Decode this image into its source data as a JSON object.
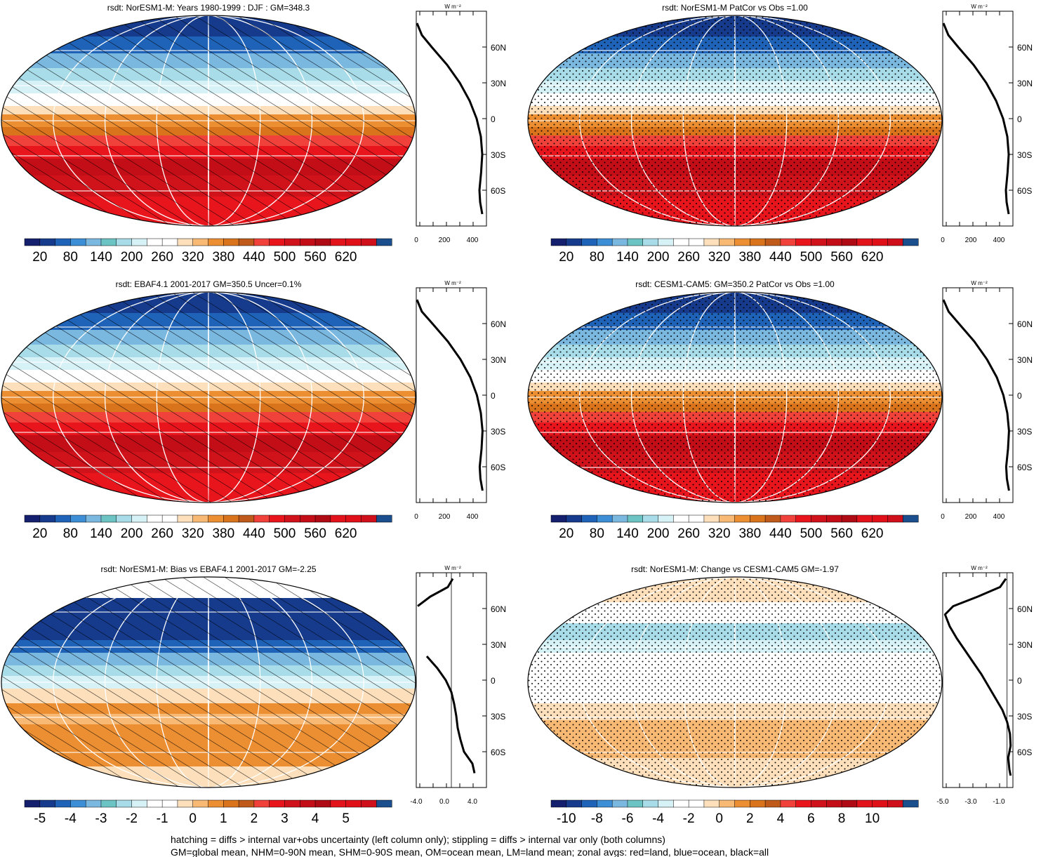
{
  "footer": {
    "line1": "hatching = diffs > internal var+obs uncertainty (left column only); stippling = diffs > internal var only (both columns)",
    "line2": "GM=global mean, NHM=0-90N mean, SHM=0-90S mean, OM=ocean mean, LM=land mean; zonal avgs: red=land, blue=ocean, black=all"
  },
  "colors": {
    "abs_palette": [
      "#14206e",
      "#163b8c",
      "#1f63b8",
      "#3c8ed6",
      "#7ab8e0",
      "#6cc3c3",
      "#a8dce8",
      "#d6f2f6",
      "#ffffff",
      "#ffffff",
      "#fde0bb",
      "#f8b974",
      "#ec8f33",
      "#d9731c",
      "#bf5a1b",
      "#f0413a",
      "#e8151d",
      "#d0121a",
      "#c40e17",
      "#ae0b14",
      "#e3131c",
      "#df1018",
      "#cf0f19",
      "#1a4e8c"
    ],
    "diff_palette": [
      "#14206e",
      "#163b8c",
      "#1f63b8",
      "#3c8ed6",
      "#7ab8e0",
      "#6cc3c3",
      "#a8dce8",
      "#d6f2f6",
      "#ffffff",
      "#ffffff",
      "#fde0bb",
      "#f8b974",
      "#ec8f33",
      "#d9731c",
      "#bf5a1b",
      "#f0413a",
      "#e8151d",
      "#d0121a",
      "#c40e17",
      "#ae0b14",
      "#e3131c",
      "#df1018",
      "#cf0f19",
      "#1a4e8c"
    ]
  },
  "chart_data": [
    {
      "type": "heatmap",
      "title": "rsdt: NorESM1-M: Years 1980-1999 : DJF : GM=348.3",
      "pattern": "hatch",
      "colorbar_ticks": [
        "20",
        "80",
        "140",
        "200",
        "260",
        "320",
        "380",
        "440",
        "500",
        "560",
        "620"
      ],
      "profile": {
        "title": "W m⁻²",
        "xticks": [
          "0",
          "200",
          "400"
        ],
        "xlim": [
          0,
          500
        ],
        "lat": [
          80,
          70,
          60,
          45,
          30,
          15,
          0,
          -15,
          -30,
          -45,
          -60,
          -70,
          -80
        ],
        "values": [
          5,
          40,
          110,
          220,
          310,
          380,
          430,
          460,
          470,
          462,
          450,
          455,
          470
        ]
      },
      "lat_labels": [
        "60N",
        "30N",
        "0",
        "30S",
        "60S"
      ]
    },
    {
      "type": "heatmap",
      "title": "rsdt: NorESM1-M PatCor vs Obs =1.00",
      "pattern": "stipple",
      "colorbar_ticks": [
        "20",
        "80",
        "140",
        "200",
        "260",
        "320",
        "380",
        "440",
        "500",
        "560",
        "620"
      ],
      "profile": {
        "title": "W m⁻²",
        "xticks": [
          "0",
          "200",
          "400"
        ],
        "xlim": [
          0,
          500
        ],
        "lat": [
          80,
          70,
          60,
          45,
          30,
          15,
          0,
          -15,
          -30,
          -45,
          -60,
          -70,
          -80
        ],
        "values": [
          5,
          40,
          110,
          220,
          310,
          380,
          430,
          460,
          470,
          462,
          450,
          455,
          470
        ]
      },
      "lat_labels": [
        "60N",
        "30N",
        "0",
        "30S",
        "60S"
      ]
    },
    {
      "type": "heatmap",
      "title": "rsdt: EBAF4.1 2001-2017 GM=350.5 Uncer=0.1%",
      "pattern": "hatch",
      "colorbar_ticks": [
        "20",
        "80",
        "140",
        "200",
        "260",
        "320",
        "380",
        "440",
        "500",
        "560",
        "620"
      ],
      "profile": {
        "title": "W m⁻²",
        "xticks": [
          "0",
          "200",
          "400"
        ],
        "xlim": [
          0,
          500
        ],
        "lat": [
          80,
          70,
          60,
          45,
          30,
          15,
          0,
          -15,
          -30,
          -45,
          -60,
          -70,
          -80
        ],
        "values": [
          5,
          40,
          115,
          225,
          315,
          385,
          432,
          460,
          472,
          465,
          452,
          457,
          472
        ]
      },
      "lat_labels": [
        "60N",
        "30N",
        "0",
        "30S",
        "60S"
      ]
    },
    {
      "type": "heatmap",
      "title": "rsdt: CESM1-CAM5: GM=350.2 PatCor vs Obs =1.00",
      "pattern": "stipple",
      "colorbar_ticks": [
        "20",
        "80",
        "140",
        "200",
        "260",
        "320",
        "380",
        "440",
        "500",
        "560",
        "620"
      ],
      "profile": {
        "title": "W m⁻²",
        "xticks": [
          "0",
          "200",
          "400"
        ],
        "xlim": [
          0,
          500
        ],
        "lat": [
          80,
          70,
          60,
          45,
          30,
          15,
          0,
          -15,
          -30,
          -45,
          -60,
          -70,
          -80
        ],
        "values": [
          5,
          42,
          115,
          225,
          315,
          385,
          432,
          460,
          472,
          465,
          452,
          457,
          472
        ]
      },
      "lat_labels": [
        "60N",
        "30N",
        "0",
        "30S",
        "60S"
      ]
    },
    {
      "type": "heatmap",
      "title": "rsdt: NorESM1-M: Bias vs EBAF4.1 2001-2017 GM=-2.25",
      "pattern": "hatch",
      "colorbar_ticks": [
        "-5",
        "-4",
        "-3",
        "-2",
        "-1",
        "0",
        "1",
        "2",
        "3",
        "4",
        "5"
      ],
      "profile": {
        "title": "W m⁻²",
        "xticks": [
          "-4.0",
          "0.0",
          "4.0"
        ],
        "xlim": [
          -5,
          5
        ],
        "lat": [
          85,
          78,
          70,
          62,
          50,
          40,
          30,
          20,
          10,
          0,
          -10,
          -20,
          -30,
          -40,
          -50,
          -60,
          -70,
          -78
        ],
        "values": [
          0.2,
          -0.5,
          -3.0,
          -4.8,
          null,
          null,
          null,
          -3.5,
          -2.0,
          -0.8,
          0.0,
          0.4,
          0.7,
          0.9,
          1.3,
          1.8,
          3.0,
          3.3
        ]
      },
      "lat_labels": [
        "60N",
        "30N",
        "0",
        "30S",
        "60S"
      ]
    },
    {
      "type": "heatmap",
      "title": "rsdt: NorESM1-M: Change vs CESM1-CAM5 GM=-1.97",
      "pattern": "stipple",
      "colorbar_ticks": [
        "-10",
        "-8",
        "-6",
        "-4",
        "-2",
        "0",
        "2",
        "4",
        "6",
        "8",
        "10"
      ],
      "profile": {
        "title": "W m⁻²",
        "xticks": [
          "-5.0",
          "-3.0",
          "-1.0"
        ],
        "xlim": [
          -5.5,
          0.5
        ],
        "lat": [
          85,
          78,
          70,
          62,
          55,
          45,
          35,
          25,
          15,
          5,
          -5,
          -15,
          -25,
          -35,
          -45,
          -55,
          -65,
          -75,
          -80
        ],
        "values": [
          -0.1,
          -0.6,
          -2.5,
          -4.6,
          -5.3,
          -4.9,
          -4.3,
          -3.6,
          -2.9,
          -2.2,
          -1.6,
          -1.0,
          -0.4,
          0.0,
          0.25,
          0.3,
          0.1,
          0.2,
          0.3
        ]
      },
      "lat_labels": [
        "60N",
        "30N",
        "0",
        "30S",
        "60S"
      ]
    }
  ]
}
